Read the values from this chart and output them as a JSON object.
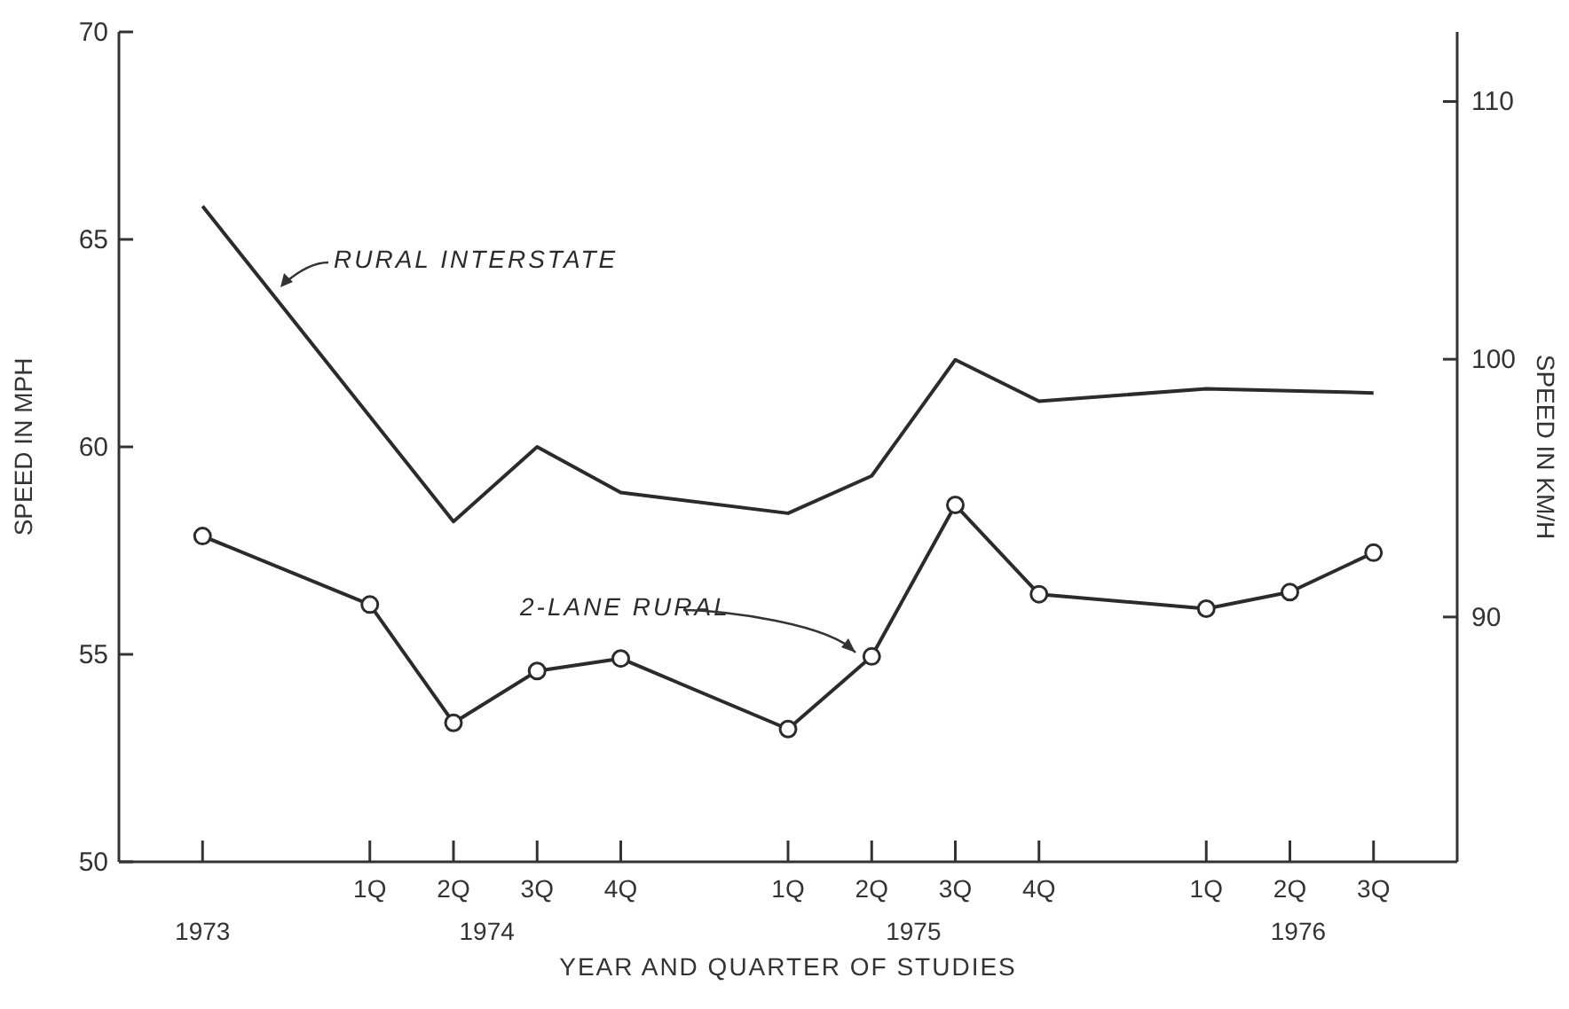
{
  "chart_data": {
    "type": "line",
    "xlabel": "YEAR AND QUARTER OF STUDIES",
    "ylabel": "SPEED IN MPH",
    "y2label": "SPEED IN KM/H",
    "categories": [
      "1973",
      null,
      "1Q",
      "2Q",
      "3Q",
      "4Q",
      null,
      "1Q",
      "2Q",
      "3Q",
      "4Q",
      null,
      "1Q",
      "2Q",
      "3Q"
    ],
    "series": [
      {
        "name": "RURAL INTERSTATE",
        "color": "#2b2b2b",
        "marker": "none",
        "values": [
          65.8,
          null,
          null,
          58.2,
          60.0,
          58.9,
          null,
          58.4,
          59.3,
          62.1,
          61.1,
          null,
          61.4,
          null,
          61.3
        ]
      },
      {
        "name": "2-LANE RURAL",
        "color": "#2b2b2b",
        "marker": "circle",
        "values": [
          57.85,
          null,
          56.2,
          53.35,
          54.6,
          54.9,
          null,
          53.2,
          54.95,
          58.6,
          56.45,
          null,
          56.1,
          56.5,
          57.45
        ]
      }
    ],
    "annotations": [
      "1974",
      "1975",
      "1976"
    ],
    "ylim": [
      50,
      70
    ],
    "yticks": [
      50,
      55,
      60,
      65,
      70
    ],
    "y2lim": [
      80.5,
      112.7
    ],
    "y2ticks": [
      90,
      100,
      110
    ],
    "grid": false
  }
}
